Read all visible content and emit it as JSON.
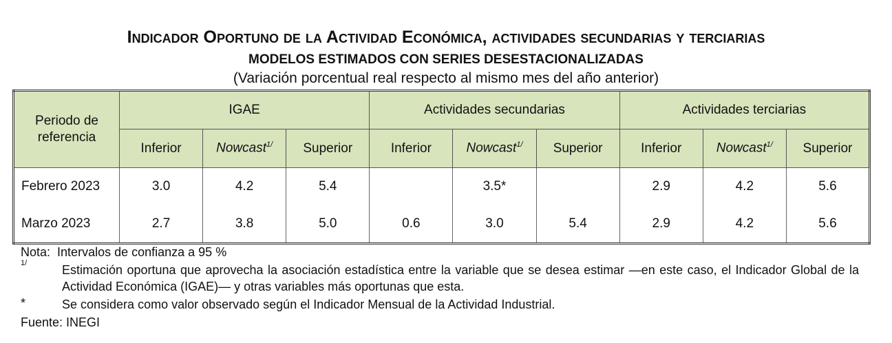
{
  "header": {
    "title": "Indicador Oportuno de la Actividad Económica, actividades secundarias y terciarias",
    "subtitle": "MODELOS ESTIMADOS CON SERIES DESESTACIONALIZADAS",
    "note": "(Variación porcentual real respecto al mismo mes del año anterior)"
  },
  "table": {
    "row_header": "Periodo de referencia",
    "groups": [
      "IGAE",
      "Actividades secundarias",
      "Actividades terciarias"
    ],
    "columns": [
      {
        "text": "Inferior"
      },
      {
        "text": "Nowcast",
        "sup": "1/"
      },
      {
        "text": "Superior"
      },
      {
        "text": "Inferior"
      },
      {
        "text": "Nowcast",
        "sup": "1/"
      },
      {
        "text": "Superior"
      },
      {
        "text": "Inferior"
      },
      {
        "text": "Nowcast",
        "sup": "1/"
      },
      {
        "text": "Superior"
      }
    ],
    "rows": [
      [
        "Febrero 2023",
        "3.0",
        "4.2",
        "5.4",
        null,
        "3.5*",
        null,
        "2.9",
        "4.2",
        "5.6"
      ],
      [
        "Marzo 2023",
        "2.7",
        "3.8",
        "5.0",
        "0.6",
        "3.0",
        "5.4",
        "2.9",
        "4.2",
        "5.6"
      ]
    ]
  },
  "footnotes": {
    "nota_label": "Nota:",
    "nota": "Intervalos de confianza a 95 %",
    "notes": [
      {
        "marker": "1/",
        "text": "Estimación oportuna que aprovecha la asociación estadística entre la variable que se desea estimar —en este caso, el Indicador Global de la Actividad Económica (IGAE)— y otras variables más oportunas que esta."
      },
      {
        "marker": "*",
        "text": "Se considera como valor observado según el Indicador Mensual de la Actividad Industrial."
      }
    ],
    "source": "Fuente: INEGI"
  }
}
